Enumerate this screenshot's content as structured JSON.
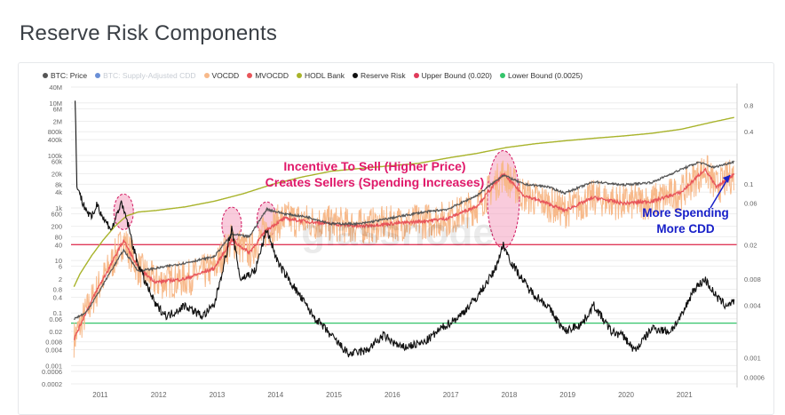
{
  "page": {
    "title": "Reserve Risk Components"
  },
  "legend": [
    {
      "label": "BTC: Price",
      "color": "#555555",
      "faded": false
    },
    {
      "label": "BTC: Supply-Adjusted CDD",
      "color": "#6a8fd6",
      "faded": true
    },
    {
      "label": "VOCDD",
      "color": "#f7b98a",
      "faded": false
    },
    {
      "label": "MVOCDD",
      "color": "#e8555a",
      "faded": false
    },
    {
      "label": "HODL Bank",
      "color": "#a8b32a",
      "faded": false
    },
    {
      "label": "Reserve Risk",
      "color": "#111111",
      "faded": false
    },
    {
      "label": "Upper Bound (0.020)",
      "color": "#e03a5a",
      "faded": false
    },
    {
      "label": "Lower Bound (0.0025)",
      "color": "#34c46a",
      "faded": false
    }
  ],
  "watermark": "glassnode",
  "annotations": {
    "incentive_line1": "Incentive To Sell (Higher Price)",
    "incentive_line2": "Creates Sellers (Spending Increases)",
    "spending_line1": "More Spending",
    "spending_line2": "More CDD"
  },
  "chart_data": {
    "type": "line",
    "x_ticks": [
      "2011",
      "2012",
      "2013",
      "2014",
      "2015",
      "2016",
      "2017",
      "2018",
      "2019",
      "2020",
      "2021"
    ],
    "left_axis": {
      "scale": "log",
      "ticks": [
        "40M",
        "10M",
        "6M",
        "2M",
        "800k",
        "400k",
        "100k",
        "60k",
        "20k",
        "8k",
        "4k",
        "1k",
        "600",
        "200",
        "80",
        "40",
        "10",
        "6",
        "2",
        "0.8",
        "0.4",
        "0.1",
        "0.06",
        "0.02",
        "0.008",
        "0.004",
        "0.001",
        "0.0006",
        "0.0002"
      ],
      "values": [
        40000000,
        10000000,
        6000000,
        2000000,
        800000,
        400000,
        100000,
        60000,
        20000,
        8000,
        4000,
        1000,
        600,
        200,
        80,
        40,
        10,
        6,
        2,
        0.8,
        0.4,
        0.1,
        0.06,
        0.02,
        0.008,
        0.004,
        0.001,
        0.0006,
        0.0002
      ]
    },
    "right_axis": {
      "scale": "log",
      "ticks": [
        "0.8",
        "0.4",
        "0.1",
        "0.06",
        "0.02",
        "0.008",
        "0.004",
        "0.001",
        "0.0006"
      ],
      "values": [
        0.8,
        0.4,
        0.1,
        0.06,
        0.02,
        0.008,
        0.004,
        0.001,
        0.0006
      ]
    },
    "upper_bound": 0.02,
    "lower_bound": 0.0025,
    "series": [
      {
        "name": "HODL Bank",
        "color": "#a8b32a",
        "axis": "left",
        "x": [
          2010.6,
          2010.7,
          2010.9,
          2011.1,
          2011.3,
          2011.5,
          2011.7,
          2012.0,
          2012.5,
          2013.0,
          2013.5,
          2014.0,
          2014.5,
          2015.0,
          2015.5,
          2016.0,
          2016.5,
          2017.0,
          2017.5,
          2018.0,
          2018.5,
          2019.0,
          2019.5,
          2020.0,
          2020.5,
          2021.0,
          2021.5,
          2021.9
        ],
        "y": [
          1,
          3,
          15,
          60,
          200,
          500,
          700,
          800,
          1100,
          1800,
          3500,
          8000,
          15000,
          25000,
          32000,
          40000,
          50000,
          80000,
          120000,
          200000,
          280000,
          360000,
          450000,
          550000,
          700000,
          1000000,
          1800000,
          2800000
        ]
      },
      {
        "name": "MVOCDD",
        "color": "#e8555a",
        "axis": "left",
        "x": [
          2010.6,
          2010.8,
          2011.0,
          2011.2,
          2011.45,
          2011.7,
          2012.0,
          2012.5,
          2013.0,
          2013.3,
          2013.6,
          2013.9,
          2014.2,
          2014.6,
          2015.0,
          2015.5,
          2016.0,
          2016.5,
          2017.0,
          2017.5,
          2017.95,
          2018.3,
          2018.7,
          2019.0,
          2019.5,
          2020.0,
          2020.5,
          2021.0,
          2021.4,
          2021.6,
          2021.9
        ],
        "y": [
          0.01,
          0.1,
          0.8,
          5,
          60,
          5,
          1.5,
          2,
          5,
          60,
          20,
          150,
          400,
          300,
          250,
          200,
          250,
          300,
          400,
          1200,
          20000,
          3000,
          1500,
          800,
          2500,
          1500,
          1800,
          4000,
          30000,
          6000,
          20000
        ]
      },
      {
        "name": "BTC: Price",
        "color": "#555555",
        "axis": "left",
        "x": [
          2010.6,
          2010.8,
          2011.0,
          2011.2,
          2011.45,
          2011.7,
          2012.0,
          2012.5,
          2013.0,
          2013.3,
          2013.6,
          2013.9,
          2014.2,
          2014.6,
          2015.0,
          2015.5,
          2016.0,
          2016.5,
          2017.0,
          2017.5,
          2017.95,
          2018.3,
          2018.7,
          2019.0,
          2019.5,
          2020.0,
          2020.5,
          2021.0,
          2021.3,
          2021.55,
          2021.9
        ],
        "y": [
          0.06,
          0.1,
          0.5,
          3,
          25,
          4,
          5,
          8,
          14,
          100,
          80,
          900,
          600,
          450,
          250,
          250,
          400,
          650,
          900,
          3000,
          18000,
          8000,
          6500,
          3700,
          10000,
          7500,
          9500,
          30000,
          55000,
          35000,
          58000
        ]
      },
      {
        "name": "Reserve Risk",
        "color": "#111111",
        "axis": "right",
        "x": [
          2010.62,
          2010.65,
          2010.75,
          2010.9,
          2011.0,
          2011.1,
          2011.25,
          2011.4,
          2011.5,
          2011.65,
          2011.8,
          2012.0,
          2012.2,
          2012.5,
          2012.8,
          2013.0,
          2013.2,
          2013.3,
          2013.45,
          2013.7,
          2013.9,
          2014.1,
          2014.4,
          2014.7,
          2015.0,
          2015.3,
          2015.6,
          2015.9,
          2016.2,
          2016.6,
          2016.9,
          2017.2,
          2017.5,
          2017.8,
          2017.95,
          2018.1,
          2018.4,
          2018.7,
          2019.0,
          2019.3,
          2019.5,
          2019.8,
          2020.0,
          2020.2,
          2020.5,
          2020.8,
          2021.0,
          2021.2,
          2021.4,
          2021.6,
          2021.75,
          2021.9
        ],
        "y": [
          0.9,
          0.1,
          0.06,
          0.04,
          0.06,
          0.04,
          0.03,
          0.06,
          0.04,
          0.015,
          0.008,
          0.004,
          0.003,
          0.004,
          0.003,
          0.004,
          0.015,
          0.03,
          0.008,
          0.01,
          0.03,
          0.012,
          0.006,
          0.003,
          0.0018,
          0.0011,
          0.0012,
          0.0018,
          0.0013,
          0.0015,
          0.0022,
          0.003,
          0.005,
          0.01,
          0.02,
          0.012,
          0.006,
          0.004,
          0.002,
          0.0025,
          0.004,
          0.002,
          0.0018,
          0.0012,
          0.0022,
          0.002,
          0.003,
          0.006,
          0.008,
          0.005,
          0.004,
          0.0045
        ]
      }
    ],
    "highlight_regions": [
      {
        "label": "2011 peak",
        "x_center": 2011.45
      },
      {
        "label": "2013a peak",
        "x_center": 2013.3
      },
      {
        "label": "2013b peak",
        "x_center": 2013.9
      },
      {
        "label": "2017 peak",
        "x_center": 2017.95
      }
    ]
  }
}
